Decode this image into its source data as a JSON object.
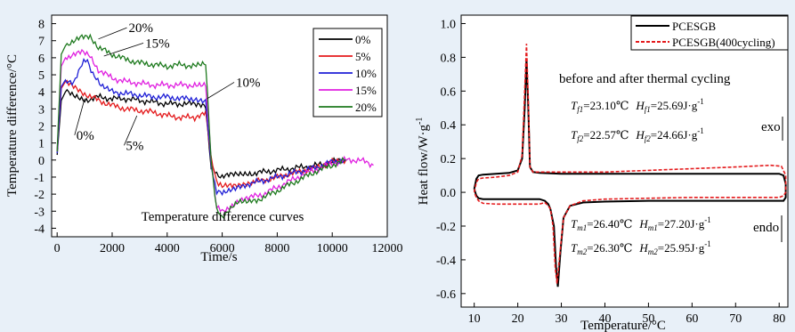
{
  "chart_data": [
    {
      "type": "line",
      "caption": "Temperature difference curves",
      "xlabel": "Time/s",
      "ylabel": "Temperature difference/°C",
      "xlim": [
        -200,
        12000
      ],
      "ylim": [
        -4.5,
        8.5
      ],
      "xticks": [
        0,
        2000,
        4000,
        6000,
        8000,
        10000,
        12000
      ],
      "yticks": [
        -4,
        -3,
        -2,
        -1,
        0,
        1,
        2,
        3,
        4,
        5,
        6,
        7,
        8
      ],
      "legend_position": "top-right",
      "series": [
        {
          "name": "0%",
          "color": "#000000",
          "x": [
            0,
            150,
            300,
            600,
            1000,
            1500,
            2000,
            2500,
            3000,
            3500,
            4000,
            4500,
            5000,
            5400,
            5600,
            5800,
            6000,
            6300,
            6600,
            7000,
            7500,
            8000,
            8500,
            9000,
            9500,
            10000,
            10500
          ],
          "y": [
            0.3,
            3.5,
            4.0,
            3.8,
            3.5,
            3.7,
            3.6,
            3.6,
            3.5,
            3.4,
            3.3,
            3.3,
            3.3,
            3.2,
            -0.5,
            -0.8,
            -1.0,
            -0.9,
            -0.8,
            -0.8,
            -0.7,
            -0.6,
            -0.5,
            -0.4,
            -0.3,
            -0.1,
            0.0
          ]
        },
        {
          "name": "5%",
          "color": "#e41a1c",
          "x": [
            0,
            150,
            300,
            600,
            1000,
            1500,
            2000,
            2500,
            3000,
            3500,
            4000,
            4500,
            5000,
            5400,
            5600,
            5800,
            6000,
            6300,
            6600,
            7000,
            7500,
            8000,
            8500,
            9000,
            9500,
            10000,
            10500
          ],
          "y": [
            0.5,
            4.2,
            4.6,
            4.4,
            3.9,
            3.5,
            3.2,
            3.0,
            2.9,
            2.8,
            2.6,
            2.5,
            2.5,
            2.9,
            0.0,
            -1.2,
            -1.6,
            -1.5,
            -1.4,
            -1.3,
            -1.2,
            -1.0,
            -0.8,
            -0.6,
            -0.4,
            -0.1,
            0.0
          ]
        },
        {
          "name": "10%",
          "color": "#1f1fd6",
          "x": [
            0,
            150,
            300,
            600,
            900,
            1100,
            1300,
            1600,
            2000,
            2500,
            3000,
            3500,
            4000,
            4500,
            5000,
            5400,
            5600,
            5800,
            6000,
            6300,
            6600,
            7000,
            7500,
            8000,
            8500,
            9000,
            9500,
            10000,
            10500
          ],
          "y": [
            0.4,
            4.3,
            4.7,
            4.6,
            5.6,
            5.9,
            5.0,
            4.3,
            4.0,
            3.9,
            3.8,
            3.7,
            3.7,
            3.6,
            3.6,
            3.5,
            -0.4,
            -1.8,
            -2.0,
            -1.7,
            -1.5,
            -1.4,
            -1.2,
            -1.0,
            -0.8,
            -0.6,
            -0.4,
            -0.1,
            0.0
          ]
        },
        {
          "name": "15%",
          "color": "#e020e0",
          "x": [
            0,
            150,
            300,
            600,
            900,
            1200,
            1500,
            2000,
            2500,
            3000,
            3500,
            4000,
            4500,
            5000,
            5400,
            5600,
            5800,
            6000,
            6300,
            6600,
            7000,
            7500,
            8000,
            8500,
            9000,
            9500,
            10000,
            10500,
            11000,
            11500
          ],
          "y": [
            0.5,
            5.5,
            6.0,
            6.2,
            6.3,
            6.1,
            5.3,
            4.8,
            4.6,
            4.5,
            4.4,
            4.4,
            4.4,
            4.4,
            4.4,
            0.0,
            -2.8,
            -3.0,
            -2.7,
            -2.4,
            -2.2,
            -2.0,
            -1.6,
            -1.2,
            -0.8,
            -0.5,
            -0.2,
            0.0,
            0.0,
            -0.3
          ]
        },
        {
          "name": "20%",
          "color": "#1e7a1e",
          "x": [
            0,
            150,
            300,
            600,
            900,
            1200,
            1500,
            2000,
            2500,
            3000,
            3500,
            4000,
            4500,
            5000,
            5400,
            5600,
            5800,
            6000,
            6300,
            6600,
            7000,
            7500,
            8000,
            8500,
            9000,
            9500,
            10000,
            10500
          ],
          "y": [
            0.5,
            6.2,
            6.7,
            6.9,
            7.2,
            7.3,
            6.6,
            6.2,
            5.9,
            5.7,
            5.6,
            5.5,
            5.6,
            5.5,
            5.6,
            0.0,
            -3.0,
            -3.3,
            -2.8,
            -2.5,
            -2.5,
            -2.2,
            -1.8,
            -1.4,
            -1.0,
            -0.6,
            -0.3,
            0.0
          ]
        }
      ],
      "annotations": [
        {
          "text": "20%",
          "x": 2600,
          "y": 7.5
        },
        {
          "text": "15%",
          "x": 3200,
          "y": 6.6
        },
        {
          "text": "10%",
          "x": 6500,
          "y": 4.3
        },
        {
          "text": "0%",
          "x": 700,
          "y": 1.2
        },
        {
          "text": "5%",
          "x": 2500,
          "y": 0.6
        }
      ]
    },
    {
      "type": "line",
      "xlabel": "Temperature/°C",
      "ylabel": "Heat flow/W·g",
      "ylabel_sup": "-1",
      "xlim": [
        7,
        82
      ],
      "ylim": [
        -0.68,
        1.05
      ],
      "xticks": [
        10,
        20,
        30,
        40,
        50,
        60,
        70,
        80
      ],
      "yticks": [
        -0.6,
        -0.4,
        -0.2,
        0.0,
        0.2,
        0.4,
        0.6,
        0.8,
        1.0
      ],
      "legend_position": "top-right",
      "title": "before and after thermal cycling",
      "series": [
        {
          "name": "PCESGB",
          "color": "#000000",
          "dash": "solid",
          "x": [
            10,
            10.5,
            11,
            12,
            15,
            18,
            20,
            21,
            21.6,
            22,
            22.4,
            22.8,
            23.5,
            25,
            30,
            40,
            50,
            60,
            70,
            80,
            81,
            81.5,
            81.5,
            81,
            80,
            70,
            60,
            50,
            40,
            35,
            32,
            30.5,
            29.8,
            29.2,
            28.8,
            28.3,
            27.5,
            27,
            26.2,
            25,
            20,
            15,
            12,
            11,
            10.5,
            10
          ],
          "y": [
            0.02,
            0.08,
            0.1,
            0.105,
            0.11,
            0.115,
            0.13,
            0.2,
            0.5,
            0.79,
            0.5,
            0.15,
            0.12,
            0.115,
            0.11,
            0.11,
            0.11,
            0.11,
            0.11,
            0.11,
            0.1,
            0.05,
            -0.03,
            -0.05,
            -0.05,
            -0.05,
            -0.05,
            -0.05,
            -0.055,
            -0.06,
            -0.08,
            -0.15,
            -0.35,
            -0.56,
            -0.45,
            -0.2,
            -0.1,
            -0.07,
            -0.05,
            -0.04,
            -0.04,
            -0.04,
            -0.04,
            -0.035,
            -0.02,
            0.02
          ]
        },
        {
          "name": "PCESGB(400cycling)",
          "color": "#e41a1c",
          "dash": "dashed",
          "x": [
            10,
            10.5,
            11,
            12,
            15,
            18,
            20,
            21,
            21.5,
            22,
            22.4,
            22.8,
            23.5,
            25,
            30,
            40,
            50,
            60,
            70,
            78,
            80.5,
            81.5,
            81.5,
            81,
            80,
            70,
            60,
            50,
            40,
            35,
            32,
            30.5,
            29.6,
            29.0,
            28.6,
            28.1,
            27.5,
            27,
            26.2,
            25,
            20,
            15,
            12,
            11,
            10.5,
            10
          ],
          "y": [
            0.0,
            0.06,
            0.08,
            0.085,
            0.09,
            0.1,
            0.12,
            0.22,
            0.55,
            0.88,
            0.55,
            0.15,
            0.12,
            0.12,
            0.12,
            0.12,
            0.13,
            0.14,
            0.15,
            0.16,
            0.155,
            0.1,
            0.0,
            -0.02,
            -0.03,
            -0.03,
            -0.03,
            -0.035,
            -0.04,
            -0.05,
            -0.08,
            -0.15,
            -0.38,
            -0.54,
            -0.45,
            -0.2,
            -0.1,
            -0.08,
            -0.06,
            -0.07,
            -0.07,
            -0.07,
            -0.065,
            -0.05,
            -0.03,
            0.0
          ]
        }
      ],
      "params": [
        {
          "sym": "T",
          "sub": "f1",
          "val": "=23.10℃",
          "sym2": "H",
          "sub2": "f1",
          "val2": "=25.69J·g",
          "sup2": "-1"
        },
        {
          "sym": "T",
          "sub": "f2",
          "val": "=22.57℃",
          "sym2": "H",
          "sub2": "f2",
          "val2": "=24.66J·g",
          "sup2": "-1"
        },
        {
          "sym": "T",
          "sub": "m1",
          "val": "=26.40℃",
          "sym2": "H",
          "sub2": "m1",
          "val2": "=27.20J·g",
          "sup2": "-1"
        },
        {
          "sym": "T",
          "sub": "m2",
          "val": "=26.30℃",
          "sym2": "H",
          "sub2": "m2",
          "val2": "=25.95J·g",
          "sup2": "-1"
        }
      ],
      "labels": {
        "exo": "exo",
        "endo": "endo"
      }
    }
  ]
}
